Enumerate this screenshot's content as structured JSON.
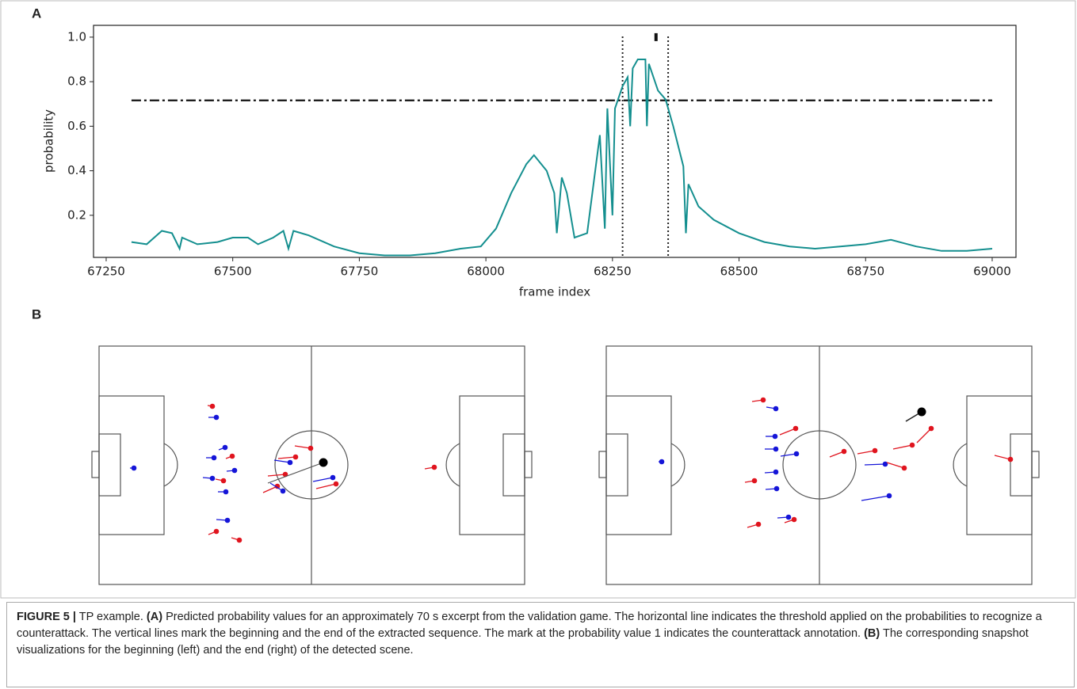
{
  "chart_data": {
    "type": "line",
    "xlabel": "frame index",
    "ylabel": "probability",
    "x": [
      67300,
      67330,
      67360,
      67380,
      67395,
      67400,
      67430,
      67470,
      67500,
      67530,
      67550,
      67580,
      67600,
      67610,
      67620,
      67650,
      67700,
      67750,
      67800,
      67850,
      67900,
      67950,
      67990,
      68020,
      68050,
      68080,
      68095,
      68120,
      68135,
      68140,
      68150,
      68160,
      68175,
      68200,
      68225,
      68235,
      68240,
      68250,
      68255,
      68270,
      68280,
      68285,
      68290,
      68300,
      68315,
      68318,
      68322,
      68340,
      68355,
      68370,
      68390,
      68395,
      68400,
      68420,
      68450,
      68500,
      68550,
      68600,
      68650,
      68700,
      68750,
      68800,
      68850,
      68900,
      68950,
      69000
    ],
    "values": [
      0.08,
      0.07,
      0.13,
      0.12,
      0.05,
      0.1,
      0.07,
      0.08,
      0.1,
      0.1,
      0.07,
      0.1,
      0.13,
      0.05,
      0.13,
      0.11,
      0.06,
      0.03,
      0.02,
      0.02,
      0.03,
      0.05,
      0.06,
      0.14,
      0.3,
      0.43,
      0.47,
      0.4,
      0.3,
      0.12,
      0.37,
      0.3,
      0.1,
      0.12,
      0.56,
      0.14,
      0.68,
      0.2,
      0.68,
      0.78,
      0.82,
      0.6,
      0.86,
      0.9,
      0.9,
      0.6,
      0.88,
      0.76,
      0.72,
      0.6,
      0.42,
      0.12,
      0.34,
      0.24,
      0.18,
      0.12,
      0.08,
      0.06,
      0.05,
      0.06,
      0.07,
      0.09,
      0.06,
      0.04,
      0.04,
      0.05
    ],
    "color": "#148f8f",
    "hline": 0.716,
    "vlines": [
      68270,
      68360
    ],
    "annotation": {
      "x": 68336,
      "y": 1.0
    },
    "xlim": [
      67225,
      69047
    ],
    "ylim": [
      0.011,
      1.053
    ],
    "xticks": [
      67250,
      67500,
      67750,
      68000,
      68250,
      68500,
      68750,
      69000
    ],
    "yticks": [
      0.2,
      0.4,
      0.6,
      0.8,
      {
        "value": 1,
        "label": "1.0"
      }
    ]
  },
  "panel_labels": [
    "A",
    "B"
  ],
  "caption": [
    {
      "text": "FIGURE 5 |",
      "bold": true
    },
    {
      "text": " TP example. ",
      "bold": false
    },
    {
      "text": "(A)",
      "bold": true
    },
    {
      "text": " Predicted probability values for an approximately 70 s excerpt from the validation game. The horizontal line indicates the threshold applied on the probabilities to recognize a counterattack. The vertical lines mark the beginning and the end of the extracted sequence. The mark at the probability value 1 indicates the counterattack annotation. ",
      "bold": false
    },
    {
      "text": "(B)",
      "bold": true
    },
    {
      "text": " The corresponding snapshot visualizations for the beginning (left) and the end (right) of the detected scene.",
      "bold": false
    }
  ]
}
